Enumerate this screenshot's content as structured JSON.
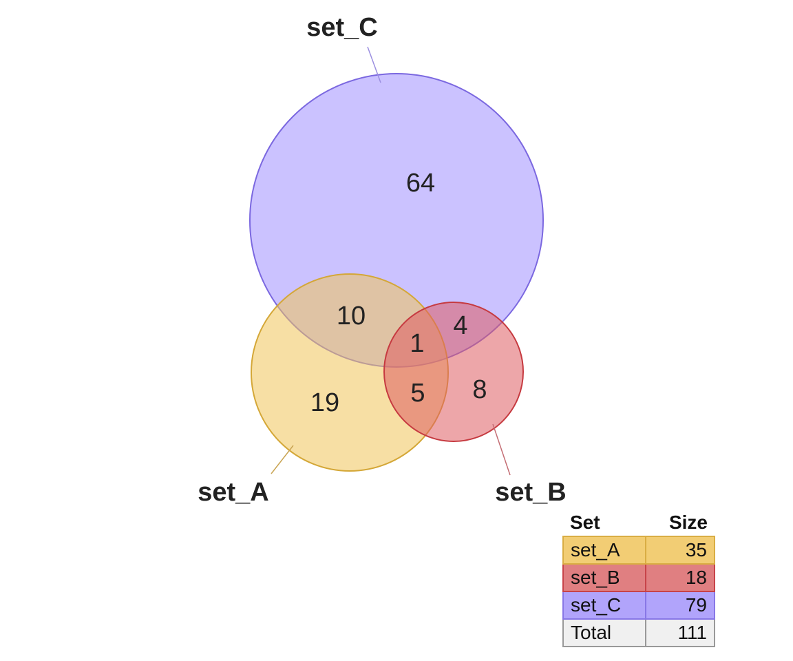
{
  "sets": [
    {
      "key": "A",
      "label": "set_A",
      "size": 35,
      "fill": "#f0c55a",
      "stroke": "#d4a737",
      "row_color": "#f2cd74",
      "row_border": "#d9ad43"
    },
    {
      "key": "B",
      "label": "set_B",
      "size": 18,
      "fill": "#df5d63",
      "stroke": "#c63a40",
      "row_color": "#e07f81",
      "row_border": "#c74349"
    },
    {
      "key": "C",
      "label": "set_C",
      "size": 79,
      "fill": "#a08fff",
      "stroke": "#7b68e0",
      "row_color": "#b1a4fb",
      "row_border": "#8877e6"
    }
  ],
  "regions": [
    {
      "sets": "C only",
      "count": "64"
    },
    {
      "sets": "A∩C",
      "count": "10"
    },
    {
      "sets": "B∩C",
      "count": "4"
    },
    {
      "sets": "A∩B∩C",
      "count": "1"
    },
    {
      "sets": "A only",
      "count": "19"
    },
    {
      "sets": "A∩B",
      "count": "5"
    },
    {
      "sets": "B only",
      "count": "8"
    }
  ],
  "table": {
    "headers": {
      "set": "Set",
      "size": "Size"
    },
    "rows": [
      {
        "name": "set_A",
        "size": "35"
      },
      {
        "name": "set_B",
        "size": "18"
      },
      {
        "name": "set_C",
        "size": "79"
      },
      {
        "name": "Total",
        "size": "111"
      }
    ]
  }
}
